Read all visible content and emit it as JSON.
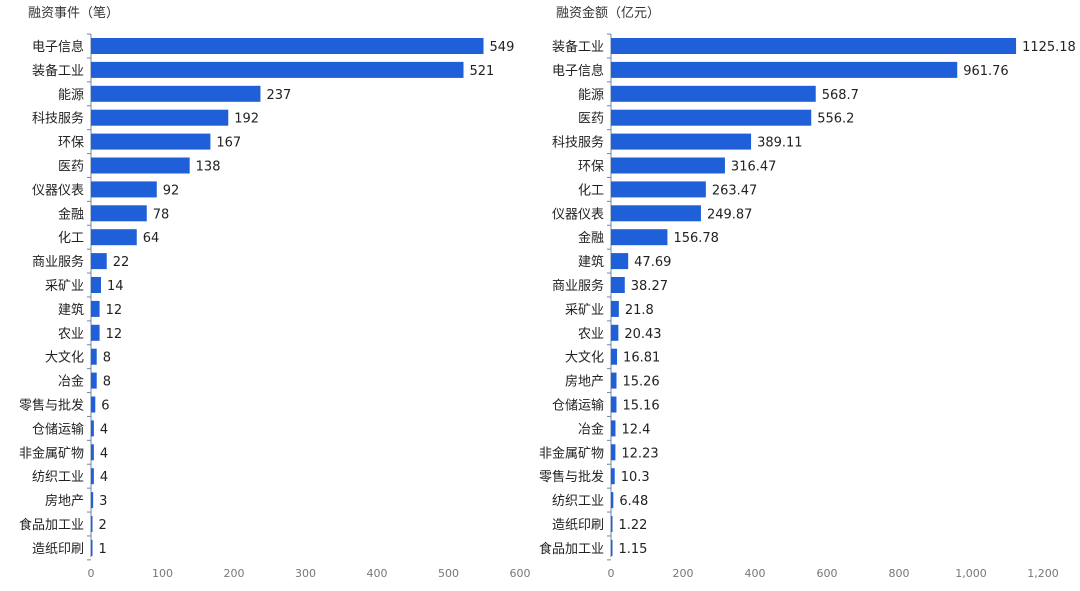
{
  "chart_data": [
    {
      "type": "bar",
      "orientation": "horizontal",
      "title": "融资事件（笔）",
      "categories": [
        "电子信息",
        "装备工业",
        "能源",
        "科技服务",
        "环保",
        "医药",
        "仪器仪表",
        "金融",
        "化工",
        "商业服务",
        "采矿业",
        "建筑",
        "农业",
        "大文化",
        "冶金",
        "零售与批发",
        "仓储运输",
        "非金属矿物",
        "纺织工业",
        "房地产",
        "食品加工业",
        "造纸印刷"
      ],
      "values": [
        549,
        521,
        237,
        192,
        167,
        138,
        92,
        78,
        64,
        22,
        14,
        12,
        12,
        8,
        8,
        6,
        4,
        4,
        4,
        3,
        2,
        1
      ],
      "value_labels": [
        "549",
        "521",
        "237",
        "192",
        "167",
        "138",
        "92",
        "78",
        "64",
        "22",
        "14",
        "12",
        "12",
        "8",
        "8",
        "6",
        "4",
        "4",
        "4",
        "3",
        "2",
        "1"
      ],
      "xlim": [
        0,
        600
      ],
      "xticks": [
        "0",
        "100",
        "200",
        "300",
        "400",
        "500",
        "600"
      ],
      "grid": false,
      "bar_color": "#1f5fd8"
    },
    {
      "type": "bar",
      "orientation": "horizontal",
      "title": "融资金额（亿元）",
      "categories": [
        "装备工业",
        "电子信息",
        "能源",
        "医药",
        "科技服务",
        "环保",
        "化工",
        "仪器仪表",
        "金融",
        "建筑",
        "商业服务",
        "采矿业",
        "农业",
        "大文化",
        "房地产",
        "仓储运输",
        "冶金",
        "非金属矿物",
        "零售与批发",
        "纺织工业",
        "造纸印刷",
        "食品加工业"
      ],
      "values": [
        1125.18,
        961.76,
        568.7,
        556.2,
        389.11,
        316.47,
        263.47,
        249.87,
        156.78,
        47.69,
        38.27,
        21.8,
        20.43,
        16.81,
        15.26,
        15.16,
        12.4,
        12.23,
        10.3,
        6.48,
        1.22,
        1.15
      ],
      "value_labels": [
        "1125.18",
        "961.76",
        "568.7",
        "556.2",
        "389.11",
        "316.47",
        "263.47",
        "249.87",
        "156.78",
        "47.69",
        "38.27",
        "21.8",
        "20.43",
        "16.81",
        "15.26",
        "15.16",
        "12.4",
        "12.23",
        "10.3",
        "6.48",
        "1.22",
        "1.15"
      ],
      "xlim": [
        0,
        1250
      ],
      "xticks": [
        "0",
        "200",
        "400",
        "600",
        "800",
        "1,000",
        "1,200"
      ],
      "grid": false,
      "bar_color": "#1f5fd8"
    }
  ]
}
